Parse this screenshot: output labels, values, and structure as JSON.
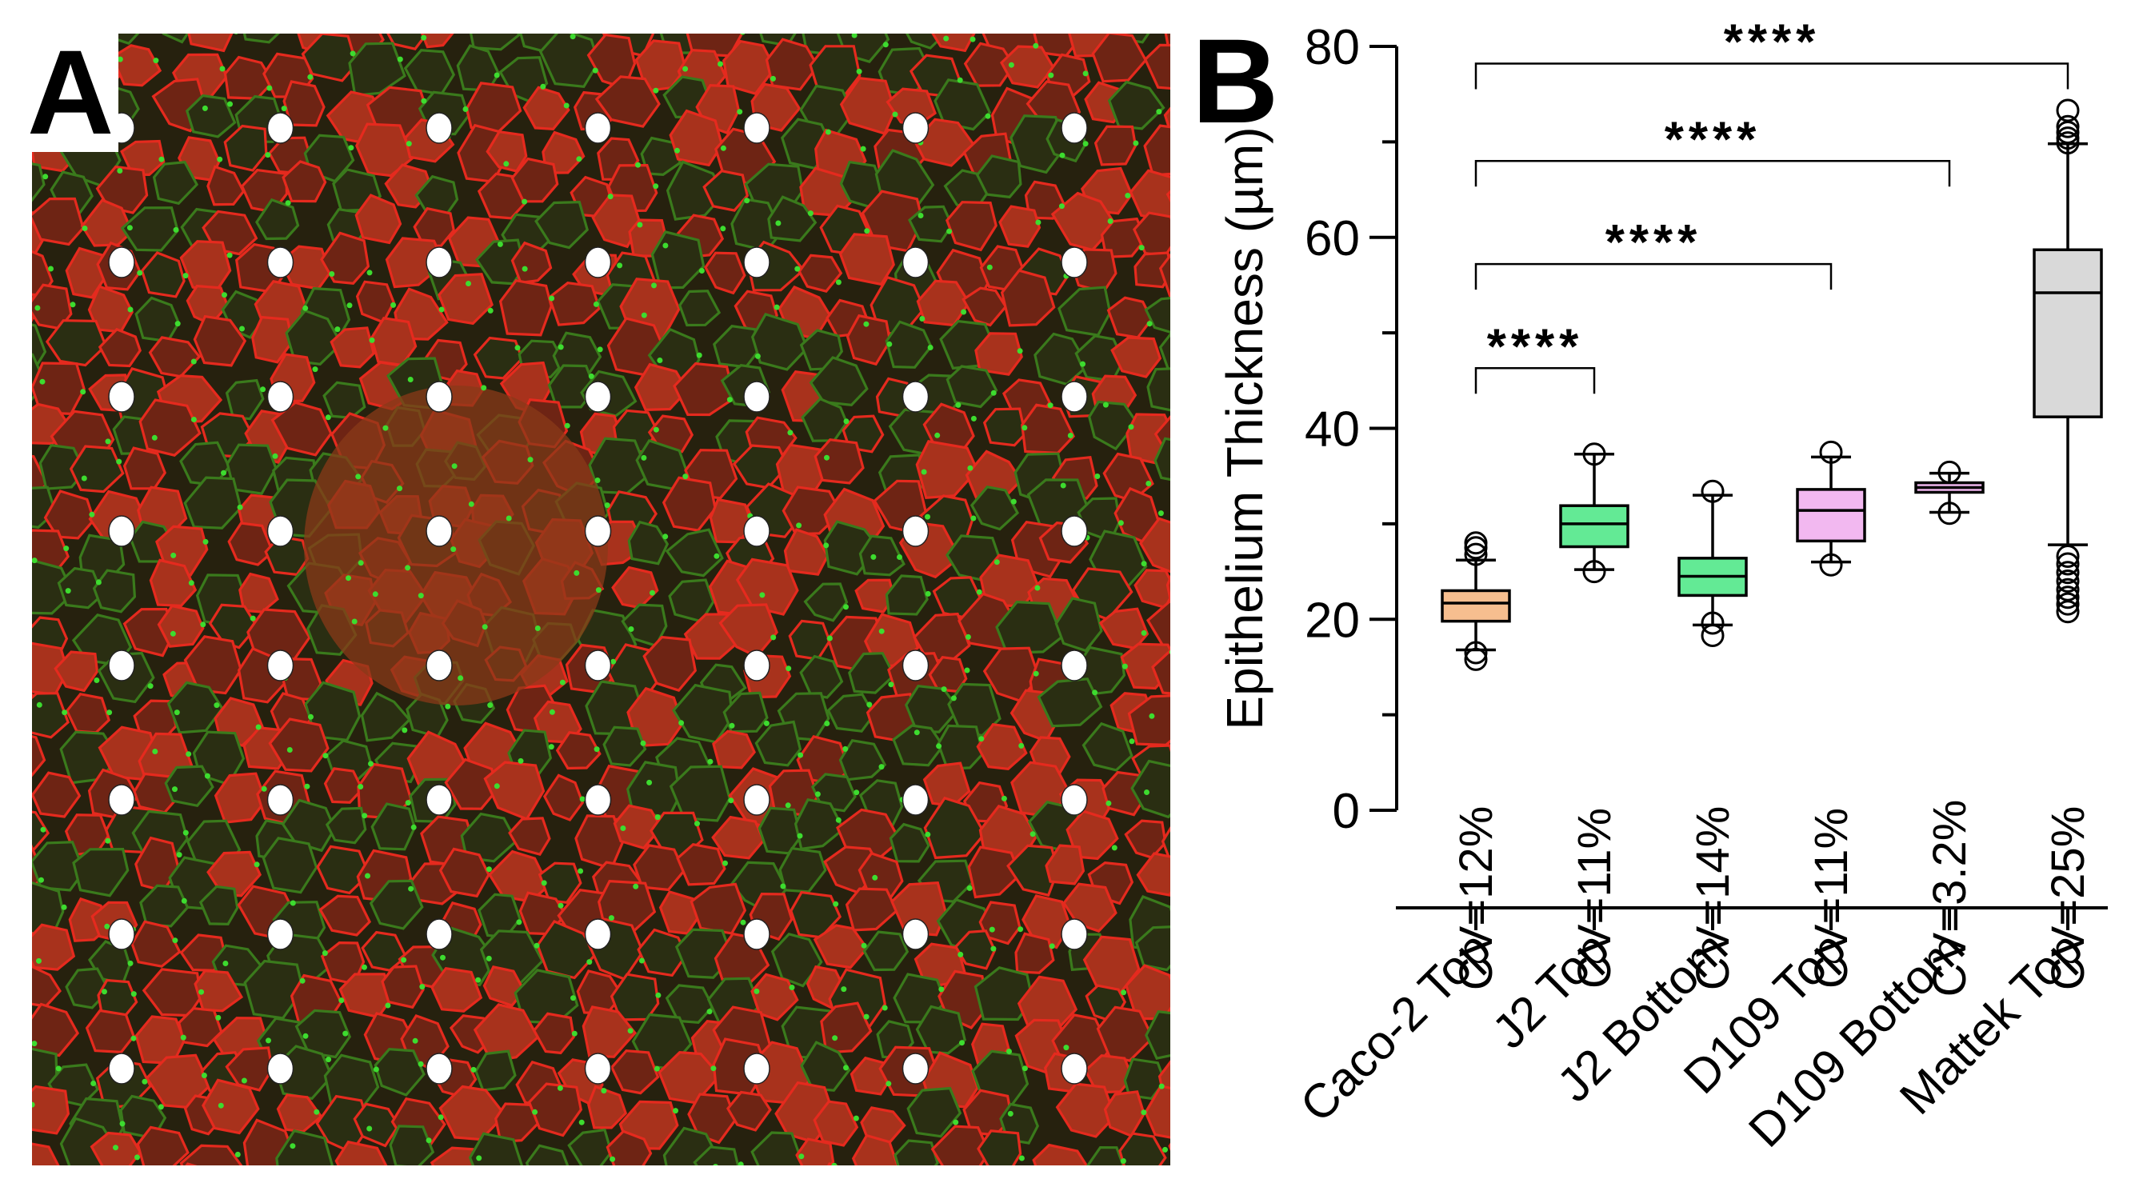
{
  "panel_a": {
    "label": "A",
    "description_icon": "fluorescence-microscopy-image",
    "colors": {
      "membrane": "#e52a1e",
      "junctions": "#3ddc2f",
      "background": "#1e2d12",
      "dots": "#ffffff"
    },
    "grid": {
      "rows": 8,
      "cols": 7
    }
  },
  "panel_b": {
    "label": "B"
  },
  "chart_data": {
    "type": "box",
    "ylabel": "Epithelium Thickness (µm)",
    "xlabel": "",
    "ylim": [
      0,
      80
    ],
    "yticks": [
      0,
      20,
      40,
      60,
      80
    ],
    "ytick_labels": [
      "0",
      "20",
      "40",
      "60",
      "80"
    ],
    "grid": false,
    "categories": [
      "Caco-2 Top",
      "J2 Top",
      "J2 Bottom",
      "D109 Top",
      "D109 Bottom",
      "Mattek Top"
    ],
    "boxes": [
      {
        "name": "Caco-2 Top",
        "min": 16.8,
        "q1": 19.8,
        "median": 21.7,
        "q3": 23.0,
        "max": 26.2,
        "outliers": [
          15.8,
          16.5,
          26.8,
          27.5,
          28.0
        ],
        "color": "#f6be8f",
        "cv": "CV=12%"
      },
      {
        "name": "J2 Top",
        "min": 25.2,
        "q1": 27.6,
        "median": 30.0,
        "q3": 31.9,
        "max": 37.3,
        "outliers": [
          25.0,
          37.3
        ],
        "color": "#63ea95",
        "cv": "CV=11%"
      },
      {
        "name": "J2 Bottom",
        "min": 19.4,
        "q1": 22.5,
        "median": 24.5,
        "q3": 26.4,
        "max": 33.0,
        "outliers": [
          18.3,
          19.6,
          33.4
        ],
        "color": "#63ea95",
        "cv": "CV=14%"
      },
      {
        "name": "D109 Top",
        "min": 26.0,
        "q1": 28.2,
        "median": 31.4,
        "q3": 33.6,
        "max": 37.0,
        "outliers": [
          25.7,
          37.5
        ],
        "color": "#f2b8f0",
        "cv": "CV=11%"
      },
      {
        "name": "D109 Bottom",
        "min": 31.2,
        "q1": 33.3,
        "median": 33.8,
        "q3": 34.3,
        "max": 35.3,
        "outliers": [
          31.1,
          35.4
        ],
        "color": "#f2b8f0",
        "cv": "CV=3.2%"
      },
      {
        "name": "Mattek Top",
        "min": 27.8,
        "q1": 41.2,
        "median": 54.2,
        "q3": 58.7,
        "max": 69.8,
        "outliers": [
          73.3,
          71.6,
          71.0,
          70.4,
          69.9,
          26.6,
          25.8,
          24.9,
          24.0,
          23.1,
          22.3,
          21.6,
          20.8
        ],
        "color": "#d9d9d9",
        "cv": "CV=25%"
      }
    ],
    "significance": [
      {
        "from": 0,
        "to": 1,
        "y": 46.3,
        "label": "****"
      },
      {
        "from": 0,
        "to": 3,
        "y": 57.2,
        "label": "****"
      },
      {
        "from": 0,
        "to": 4,
        "y": 68.0,
        "label": "****"
      },
      {
        "from": 0,
        "to": 5,
        "y": 78.2,
        "label": "****"
      }
    ]
  }
}
